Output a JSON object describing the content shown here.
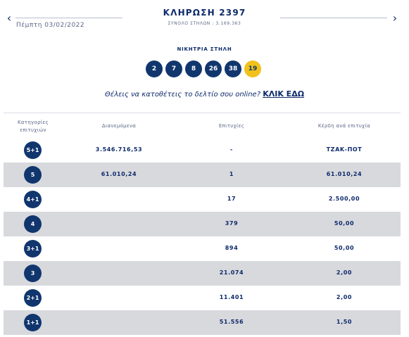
{
  "header": {
    "prev_icon": "‹",
    "next_icon": "›",
    "date": "Πέμπτη 03/02/2022",
    "title": "ΚΛΗΡΩΣΗ 2397",
    "total": "ΣΥΝΟΛΟ ΣΤΗΛΩΝ : 3.169.363"
  },
  "winning": {
    "label": "ΝΙΚΗΤΡΙΑ ΣΤΗΛΗ",
    "numbers": [
      "2",
      "7",
      "8",
      "26",
      "38"
    ],
    "bonus": "19"
  },
  "promo": {
    "text": "Θέλεις να κατοθέτεις το δελτίο σου online?",
    "link": "ΚΛΙΚ ΕΔΩ"
  },
  "table": {
    "headers": {
      "category": "Κατηγορίες επιτυχιών",
      "distributed": "Διανεμόμενα",
      "winners": "Επιτυχίες",
      "prize": "Κέρδη ανά επιτυχία"
    },
    "rows": [
      {
        "category": "5+1",
        "distributed": "3.546.716,53",
        "winners": "-",
        "prize": "ΤΖΑΚ-ΠΟΤ"
      },
      {
        "category": "5",
        "distributed": "61.010,24",
        "winners": "1",
        "prize": "61.010,24"
      },
      {
        "category": "4+1",
        "distributed": "",
        "winners": "17",
        "prize": "2.500,00"
      },
      {
        "category": "4",
        "distributed": "",
        "winners": "379",
        "prize": "50,00"
      },
      {
        "category": "3+1",
        "distributed": "",
        "winners": "894",
        "prize": "50,00"
      },
      {
        "category": "3",
        "distributed": "",
        "winners": "21.074",
        "prize": "2,00"
      },
      {
        "category": "2+1",
        "distributed": "",
        "winners": "11.401",
        "prize": "2,00"
      },
      {
        "category": "1+1",
        "distributed": "",
        "winners": "51.556",
        "prize": "1,50"
      }
    ]
  }
}
